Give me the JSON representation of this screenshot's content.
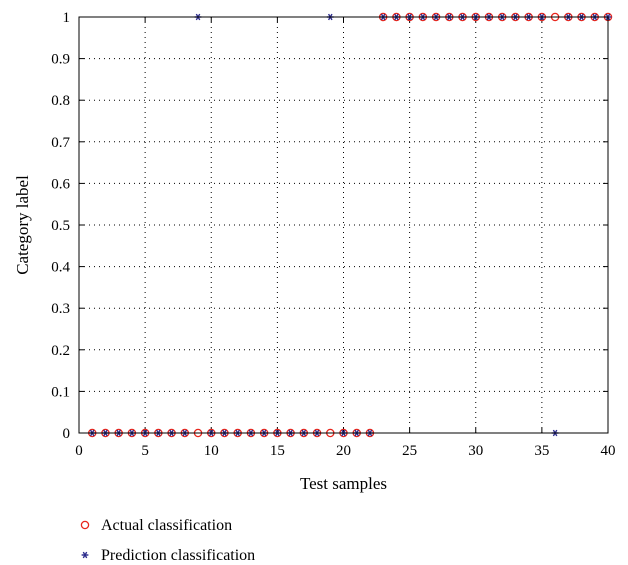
{
  "chart_data": {
    "type": "scatter",
    "title": "",
    "xlabel": "Test samples",
    "ylabel": "Category label",
    "xlim": [
      0,
      40
    ],
    "ylim": [
      0,
      1
    ],
    "xticks": [
      0,
      5,
      10,
      15,
      20,
      25,
      30,
      35,
      40
    ],
    "yticks": [
      0,
      0.1,
      0.2,
      0.3,
      0.4,
      0.5,
      0.6,
      0.7,
      0.8,
      0.9,
      1
    ],
    "grid": true,
    "legend_position": "bottom-left, below plot",
    "series": [
      {
        "name": "Actual classification",
        "marker": "circle",
        "color": "#e8261d",
        "x": [
          1,
          2,
          3,
          4,
          5,
          6,
          7,
          8,
          9,
          10,
          11,
          12,
          13,
          14,
          15,
          16,
          17,
          18,
          19,
          20,
          21,
          22,
          23,
          24,
          25,
          26,
          27,
          28,
          29,
          30,
          31,
          32,
          33,
          34,
          35,
          36,
          37,
          38,
          39,
          40
        ],
        "y": [
          0,
          0,
          0,
          0,
          0,
          0,
          0,
          0,
          0,
          0,
          0,
          0,
          0,
          0,
          0,
          0,
          0,
          0,
          0,
          0,
          0,
          0,
          1,
          1,
          1,
          1,
          1,
          1,
          1,
          1,
          1,
          1,
          1,
          1,
          1,
          1,
          1,
          1,
          1,
          1
        ]
      },
      {
        "name": "Prediction classification",
        "marker": "star",
        "color": "#2b2b8c",
        "x": [
          1,
          2,
          3,
          4,
          5,
          6,
          7,
          8,
          9,
          10,
          11,
          12,
          13,
          14,
          15,
          16,
          17,
          18,
          19,
          20,
          21,
          22,
          23,
          24,
          25,
          26,
          27,
          28,
          29,
          30,
          31,
          32,
          33,
          34,
          35,
          36,
          37,
          38,
          39,
          40
        ],
        "y": [
          0,
          0,
          0,
          0,
          0,
          0,
          0,
          0,
          1,
          0,
          0,
          0,
          0,
          0,
          0,
          0,
          0,
          0,
          1,
          0,
          0,
          0,
          1,
          1,
          1,
          1,
          1,
          1,
          1,
          1,
          1,
          1,
          1,
          1,
          1,
          0,
          1,
          1,
          1,
          1
        ]
      }
    ]
  }
}
